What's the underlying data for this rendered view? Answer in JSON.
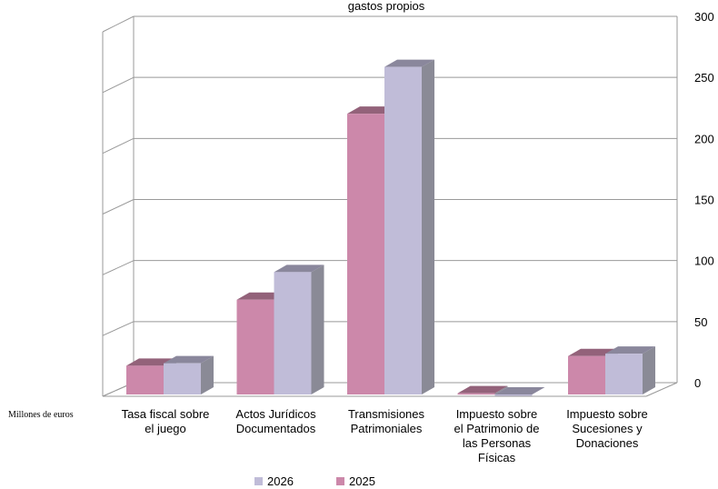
{
  "chart_data": {
    "type": "bar",
    "title": "gastos propios",
    "units_label": "Millones de euros",
    "categories": [
      "Tasa fiscal sobre el juego",
      "Actos Jurídicos Documentados",
      "Transmisiones Patrimoniales",
      "Impuesto sobre el Patrimonio de las Personas Físicas",
      "Impuesto sobre Sucesiones y Donaciones"
    ],
    "category_lines": [
      [
        "Tasa fiscal sobre",
        "el juego"
      ],
      [
        "Actos Jurídicos",
        "Documentados"
      ],
      [
        "Transmisiones",
        "Patrimoniales"
      ],
      [
        "Impuesto sobre",
        "el Patrimonio de",
        "las Personas",
        "Físicas"
      ],
      [
        "Impuesto sobre",
        "Sucesiones y",
        "Donaciones"
      ]
    ],
    "series": [
      {
        "name": "2025",
        "color": "#cc88aa",
        "values": [
          24,
          79,
          234,
          1,
          32
        ]
      },
      {
        "name": "2026",
        "color": "#c0bcd8",
        "values": [
          26,
          102,
          273,
          0,
          34
        ]
      }
    ],
    "ylim": [
      0,
      300
    ],
    "yticks": [
      0,
      50,
      100,
      150,
      200,
      250,
      300
    ],
    "legend_order": [
      "2026",
      "2025"
    ],
    "legend_position": "bottom",
    "grid": true
  }
}
